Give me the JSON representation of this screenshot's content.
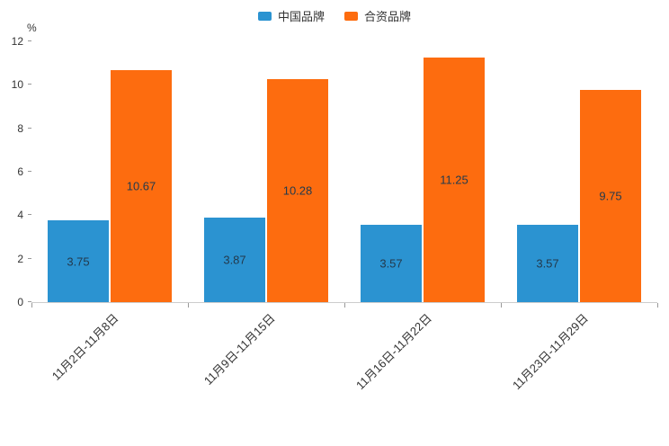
{
  "chart_data": {
    "type": "bar",
    "title": "",
    "xlabel": "",
    "ylabel": "%",
    "ylim": [
      0,
      12
    ],
    "yticks": [
      0,
      2,
      4,
      6,
      8,
      10,
      12
    ],
    "grid": false,
    "legend_position": "top",
    "value_labels": "inside-center",
    "categories": [
      "11月2日-11月8日",
      "11月9日-11月15日",
      "11月16日-11月22日",
      "11月23日-11月29日"
    ],
    "series": [
      {
        "name": "中国品牌",
        "color": "#2b93d1",
        "values": [
          3.75,
          3.87,
          3.57,
          3.57
        ]
      },
      {
        "name": "合资品牌",
        "color": "#fd6c0f",
        "values": [
          10.67,
          10.28,
          11.25,
          9.75
        ]
      }
    ],
    "axis": {
      "line_color": "#cccccc",
      "tick_color": "#999999",
      "label_color": "#333333",
      "bar_label_color": "#233a4d"
    }
  }
}
